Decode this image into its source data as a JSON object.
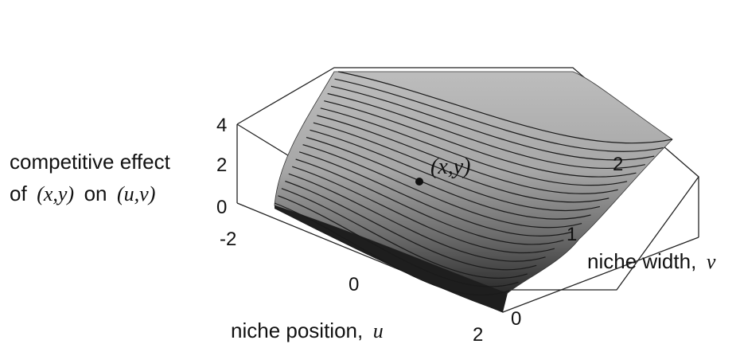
{
  "chart_data": {
    "type": "surface",
    "z_label": {
      "line1": "competitive effect",
      "line2_prefix": "of",
      "line2_var1": "(x,y)",
      "line2_mid": "on",
      "line2_var2": "(u,v)"
    },
    "x_axis": {
      "label_prefix": "niche position,",
      "label_var": "u",
      "ticks": [
        "-2",
        "0",
        "2"
      ],
      "range": [
        -2,
        2
      ]
    },
    "y_axis": {
      "label_prefix": "niche width,",
      "label_var": "v",
      "ticks": [
        "0",
        "1",
        "2"
      ],
      "range": [
        0,
        2
      ]
    },
    "z_axis": {
      "ticks": [
        "0",
        "2",
        "4"
      ],
      "range": [
        0,
        4
      ]
    },
    "point": {
      "label": "(x,y)"
    },
    "surface_color": "#9a9a9a",
    "contour_color": "#1a1a1a"
  }
}
